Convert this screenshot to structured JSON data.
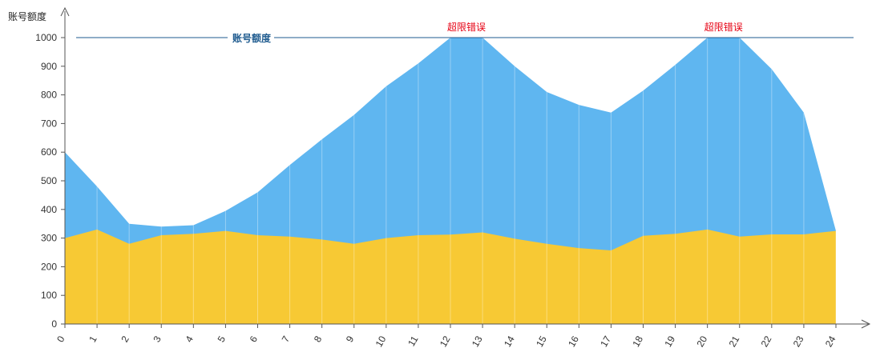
{
  "chart_data": {
    "type": "area",
    "ylabel": "账号额度",
    "xlabel": "",
    "x": [
      0,
      1,
      2,
      3,
      4,
      5,
      6,
      7,
      8,
      9,
      10,
      11,
      12,
      13,
      14,
      15,
      16,
      17,
      18,
      19,
      20,
      21,
      22,
      23,
      24
    ],
    "ylim": [
      0,
      1000
    ],
    "yticks": [
      0,
      100,
      200,
      300,
      400,
      500,
      600,
      700,
      800,
      900,
      1000
    ],
    "series": [
      {
        "color": "#5fb6f0",
        "values": [
          600,
          480,
          350,
          340,
          345,
          395,
          460,
          555,
          645,
          730,
          830,
          910,
          1000,
          1000,
          900,
          810,
          765,
          738,
          815,
          905,
          1000,
          1000,
          890,
          738,
          325
        ]
      },
      {
        "color": "#f7c934",
        "values": [
          300,
          330,
          280,
          310,
          315,
          325,
          310,
          305,
          295,
          280,
          300,
          310,
          312,
          320,
          298,
          280,
          265,
          257,
          308,
          315,
          330,
          305,
          313,
          313,
          325
        ]
      }
    ],
    "reference_line": {
      "label": "账号额度",
      "value": 1000,
      "color": "#1f5b8f"
    },
    "annotations": [
      {
        "text": "超限错误",
        "x": 12.5,
        "color": "#e60012"
      },
      {
        "text": "超限错误",
        "x": 20.5,
        "color": "#e60012"
      }
    ],
    "legend": "none",
    "grid": false
  }
}
